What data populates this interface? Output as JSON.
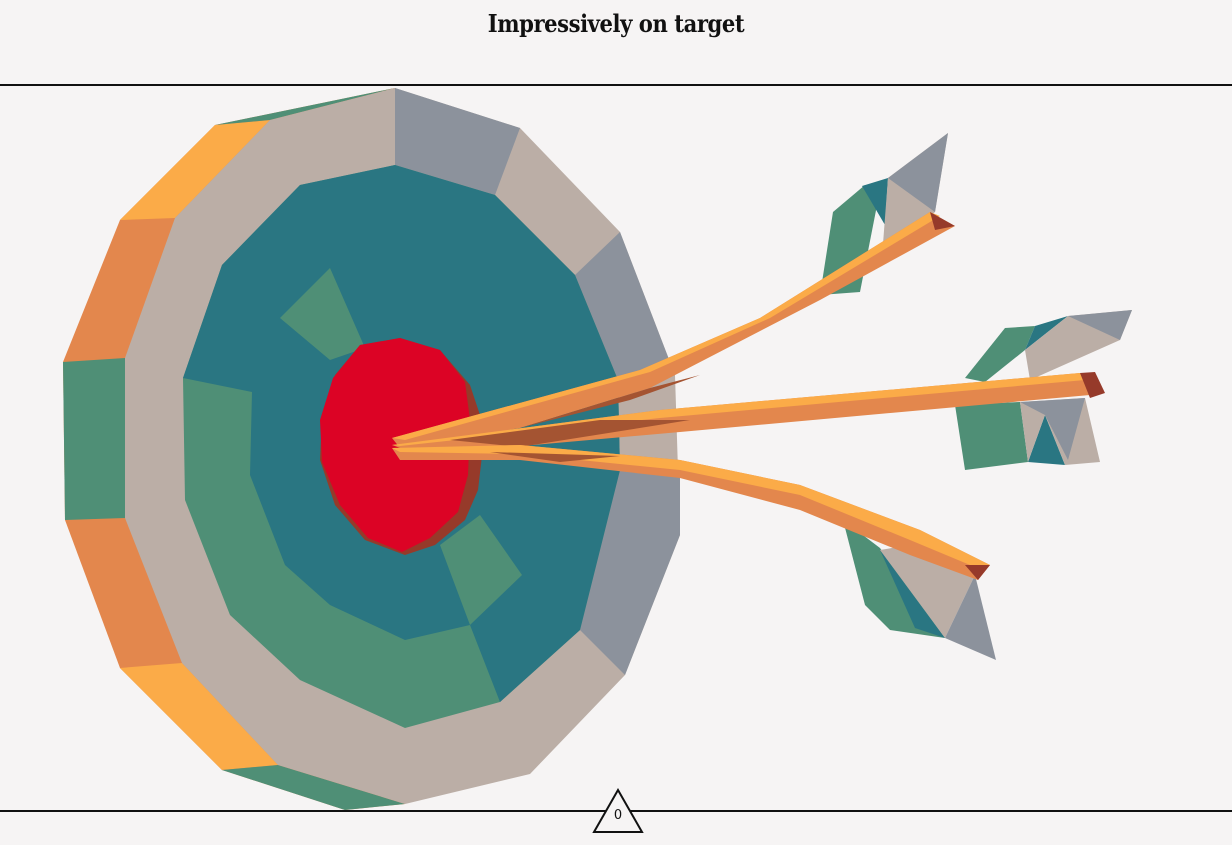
{
  "page": {
    "title": "Impressively on target"
  },
  "illustration": {
    "subject": "target-with-arrows-icon",
    "arrow_count": 3,
    "palette": {
      "background": "#f6f4f4",
      "bullseye": "#dc0325",
      "bullseye_shadow": "#963a2a",
      "teal": "#2a7682",
      "green": "#4f8f76",
      "taupe": "#bbaea6",
      "slate": "#8c929c",
      "orange": "#e3874d",
      "amber": "#fbab48",
      "rust": "#a45432"
    }
  },
  "footer": {
    "counter_value": "0",
    "counter_shape": "triangle-icon"
  }
}
